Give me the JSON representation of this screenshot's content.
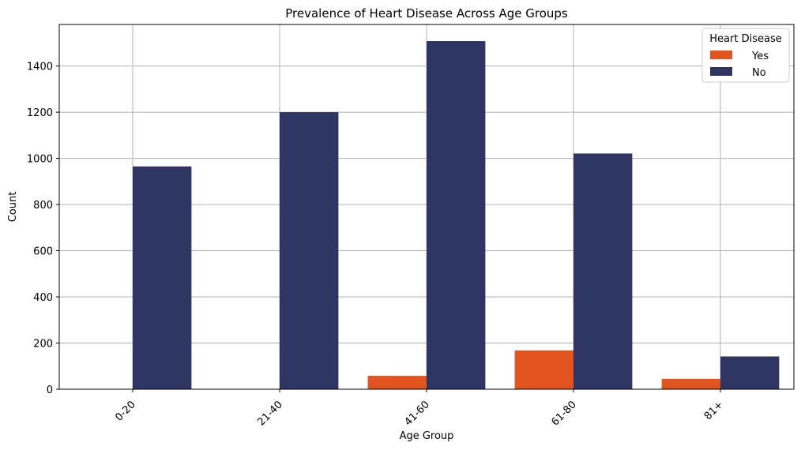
{
  "chart_data": {
    "type": "bar",
    "title": "Prevalence of Heart Disease Across Age Groups",
    "xlabel": "Age Group",
    "ylabel": "Count",
    "categories": [
      "0-20",
      "21-40",
      "41-60",
      "61-80",
      "81+"
    ],
    "series": [
      {
        "name": "Yes",
        "color": "#e1541f",
        "values": [
          0,
          0,
          58,
          168,
          45
        ]
      },
      {
        "name": "No",
        "color": "#2e3562",
        "values": [
          965,
          1200,
          1508,
          1021,
          142
        ]
      }
    ],
    "ylim": [
      0,
      1580
    ],
    "yticks": [
      0,
      200,
      400,
      600,
      800,
      1000,
      1200,
      1400
    ],
    "grid": true,
    "legend": {
      "title": "Heart Disease",
      "position": "top-right"
    }
  }
}
